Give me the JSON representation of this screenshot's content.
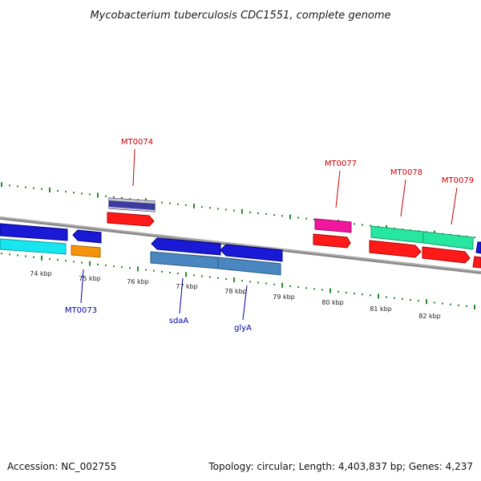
{
  "title": "Mycobacterium tuberculosis CDC1551, complete genome",
  "footer": {
    "accession": "Accession: NC_002755",
    "stats": "Topology: circular; Length: 4,403,837 bp; Genes: 4,237"
  },
  "colors": {
    "forward_label": "#cc0000",
    "reverse_label": "#0000aa",
    "ticks": "#2a8a2a",
    "backbone": "#8a8a8a"
  },
  "kbp_labels": [
    "74 kbp",
    "75 kbp",
    "76 kbp",
    "77 kbp",
    "78 kbp",
    "79 kbp",
    "80 kbp",
    "81 kbp",
    "82 kbp"
  ],
  "gene_labels": [
    {
      "text": "MT0074",
      "strand": "forward"
    },
    {
      "text": "MT0077",
      "strand": "forward"
    },
    {
      "text": "MT0078",
      "strand": "forward"
    },
    {
      "text": "MT0079",
      "strand": "forward"
    },
    {
      "text": "MT0073",
      "strand": "reverse"
    },
    {
      "text": "sdaA",
      "strand": "reverse"
    },
    {
      "text": "glyA",
      "strand": "reverse"
    }
  ]
}
